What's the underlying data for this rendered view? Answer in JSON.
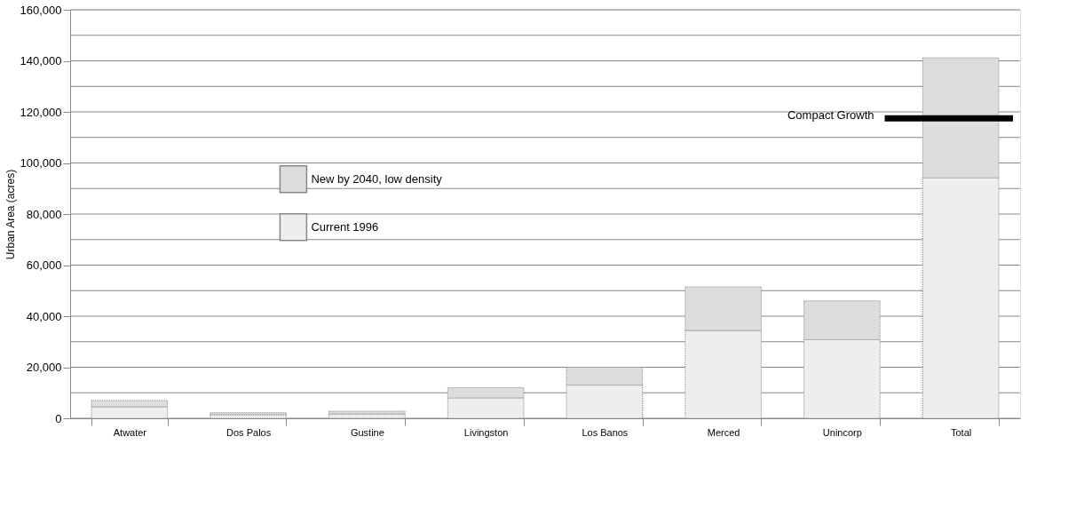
{
  "chart_data": {
    "type": "bar",
    "stacked": true,
    "ylabel": "Urban Area (acres)",
    "categories": [
      "Atwater",
      "Dos Palos",
      "Gustine",
      "Livingston",
      "Los Banos",
      "Merced",
      "Unincorp",
      "Total"
    ],
    "series": [
      {
        "name": "Current 1996",
        "color": "#eeeeee",
        "values": [
          4500,
          1400,
          1700,
          8000,
          13000,
          34400,
          30800,
          94200
        ]
      },
      {
        "name": "New by 2040, low density",
        "color": "#dddddd",
        "values": [
          2500,
          800,
          1100,
          4000,
          7000,
          17100,
          15200,
          47000
        ]
      }
    ],
    "ylim": [
      0,
      160000
    ],
    "yticks": [
      0,
      {
        "value": 10000,
        "label": null
      },
      {
        "value": 20000,
        "label": "20,000"
      },
      {
        "value": 30000,
        "label": null
      },
      {
        "value": 40000,
        "label": "40,000"
      },
      {
        "value": 50000,
        "label": null
      },
      {
        "value": 60000,
        "label": "60,000"
      },
      {
        "value": 70000,
        "label": null
      },
      {
        "value": 80000,
        "label": "80,000"
      },
      {
        "value": 90000,
        "label": null
      },
      {
        "value": 100000,
        "label": "100,000"
      },
      {
        "value": 110000,
        "label": null
      },
      {
        "value": 120000,
        "label": "120,000"
      },
      {
        "value": 130000,
        "label": null
      },
      {
        "value": 140000,
        "label": "140,000"
      },
      {
        "value": 150000,
        "label": null
      },
      {
        "value": 160000,
        "label": "160,000"
      }
    ],
    "ref_lines": [
      {
        "axis": "y",
        "value": 117500,
        "label": "Compact Growth",
        "color": "#000000"
      }
    ],
    "grid": true,
    "legend": "left"
  }
}
